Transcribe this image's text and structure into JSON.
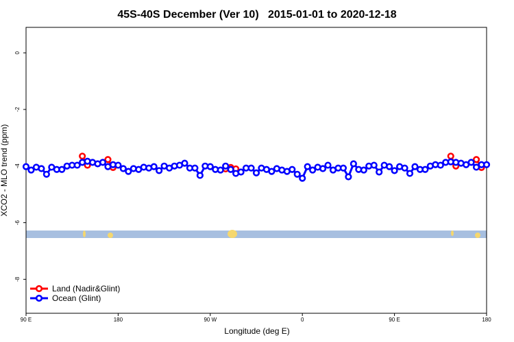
{
  "chart_data": {
    "type": "line",
    "title": "45S-40S December (Ver 10)   2015-01-01 to 2020-12-18",
    "xlabel": "Longitude (deg E)",
    "ylabel": "XCO2 - MLO trend (ppm)",
    "xlim": [
      90,
      540
    ],
    "xticks": [
      {
        "value": 90,
        "label": "90 E"
      },
      {
        "value": 180,
        "label": "180"
      },
      {
        "value": 270,
        "label": "90 W"
      },
      {
        "value": 360,
        "label": "0"
      },
      {
        "value": 450,
        "label": "90 E"
      },
      {
        "value": 540,
        "label": "180"
      }
    ],
    "ylim": [
      -9.2,
      0.9
    ],
    "yticks": [
      0,
      -2,
      -4,
      -6,
      -8
    ],
    "legend": "bottom-left",
    "x": [
      90,
      95,
      100,
      105,
      110,
      115,
      120,
      125,
      130,
      135,
      140,
      145,
      150,
      155,
      160,
      165,
      170,
      175,
      180,
      185,
      190,
      195,
      200,
      205,
      210,
      215,
      220,
      225,
      230,
      235,
      240,
      245,
      250,
      255,
      260,
      265,
      270,
      275,
      280,
      285,
      290,
      295,
      300,
      305,
      310,
      315,
      320,
      325,
      330,
      335,
      340,
      345,
      350,
      355,
      360,
      365,
      370,
      375,
      380,
      385,
      390,
      395,
      400,
      405,
      410,
      415,
      420,
      425,
      430,
      435,
      440,
      445,
      450,
      455,
      460,
      465,
      470,
      475,
      480,
      485,
      490,
      495,
      500,
      505,
      510,
      515,
      520,
      525,
      530,
      535,
      540
    ],
    "series": [
      {
        "name": "Land (Nadir&Glint)",
        "color": "#ff0000",
        "values": [
          null,
          null,
          null,
          null,
          null,
          null,
          null,
          null,
          null,
          null,
          null,
          -3.65,
          -3.97,
          null,
          null,
          null,
          -3.77,
          -4.05,
          null,
          null,
          null,
          null,
          null,
          null,
          null,
          null,
          null,
          null,
          null,
          null,
          null,
          null,
          null,
          null,
          null,
          null,
          null,
          null,
          null,
          -4.1,
          -4.05,
          -4.1,
          null,
          null,
          null,
          null,
          null,
          null,
          null,
          null,
          null,
          null,
          null,
          null,
          null,
          null,
          null,
          null,
          null,
          null,
          null,
          null,
          null,
          null,
          null,
          null,
          null,
          null,
          null,
          null,
          null,
          null,
          null,
          null,
          null,
          null,
          null,
          null,
          null,
          null,
          null,
          null,
          null,
          -3.65,
          -4.0,
          null,
          null,
          null,
          -3.77,
          -4.05,
          null
        ]
      },
      {
        "name": "Ocean (Glint)",
        "color": "#0000ff",
        "values": [
          -4.02,
          -4.14,
          -4.04,
          -4.09,
          -4.29,
          -4.04,
          -4.12,
          -4.12,
          -4.0,
          -3.97,
          -3.97,
          -3.87,
          -3.83,
          -3.87,
          -3.92,
          -3.87,
          -4.02,
          -3.95,
          -3.97,
          -4.09,
          -4.19,
          -4.09,
          -4.12,
          -4.04,
          -4.07,
          -4.02,
          -4.16,
          -4.0,
          -4.07,
          -4.0,
          -3.97,
          -3.9,
          -4.07,
          -4.07,
          -4.33,
          -4.0,
          -4.02,
          -4.12,
          -4.14,
          -4.0,
          -4.12,
          -4.26,
          -4.21,
          -4.07,
          -4.07,
          -4.24,
          -4.07,
          -4.12,
          -4.19,
          -4.09,
          -4.14,
          -4.19,
          -4.12,
          -4.29,
          -4.43,
          -4.02,
          -4.14,
          -4.04,
          -4.09,
          -3.97,
          -4.14,
          -4.07,
          -4.07,
          -4.38,
          -3.92,
          -4.12,
          -4.14,
          -4.0,
          -3.97,
          -4.21,
          -3.97,
          -4.02,
          -4.16,
          -4.02,
          -4.07,
          -4.26,
          -4.02,
          -4.12,
          -4.12,
          -4.0,
          -3.95,
          -3.97,
          -3.87,
          -3.85,
          -3.87,
          -3.9,
          -3.95,
          -3.87,
          -4.04,
          -3.95,
          -3.95
        ]
      }
    ]
  }
}
